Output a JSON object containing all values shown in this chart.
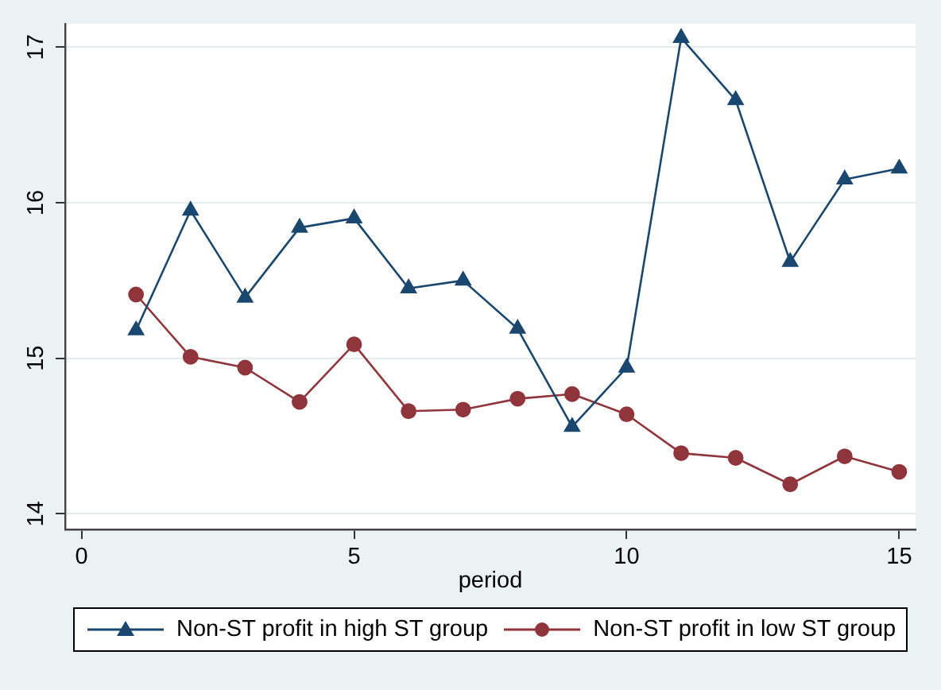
{
  "chart_data": {
    "type": "line",
    "xlabel": "period",
    "x": [
      1,
      2,
      3,
      4,
      5,
      6,
      7,
      8,
      9,
      10,
      11,
      12,
      13,
      14,
      15
    ],
    "series": [
      {
        "name": "Non-ST profit in high ST group",
        "color": "#1a476f",
        "marker": "triangle",
        "values": [
          15.18,
          15.95,
          15.39,
          15.84,
          15.9,
          15.45,
          15.5,
          15.19,
          14.56,
          14.94,
          17.06,
          16.66,
          15.62,
          16.15,
          16.22
        ]
      },
      {
        "name": "Non-ST profit in low ST group",
        "color": "#90353b",
        "marker": "circle",
        "values": [
          15.41,
          15.01,
          14.94,
          14.72,
          15.09,
          14.66,
          14.67,
          14.74,
          14.77,
          14.64,
          14.39,
          14.36,
          14.19,
          14.37,
          14.27
        ]
      }
    ],
    "xlim": [
      -0.3,
      15.3
    ],
    "xticks": [
      0,
      5,
      10,
      15
    ],
    "ylim": [
      13.9,
      17.15
    ],
    "yticks": [
      14,
      15,
      16,
      17
    ],
    "grid": "y",
    "legend": "bottom"
  }
}
